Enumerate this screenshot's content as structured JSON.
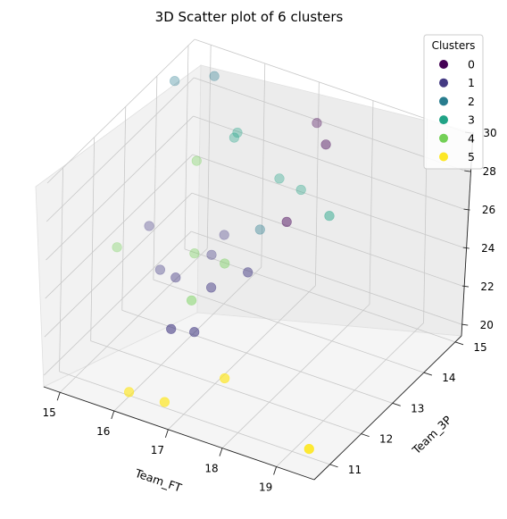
{
  "chart_data": {
    "type": "scatter",
    "projection": "3d",
    "title": "3D Scatter plot of 6 clusters",
    "xlabel": "Team_FT",
    "ylabel": "Team_3P",
    "zlabel": "",
    "xlim": [
      14.7,
      19.7
    ],
    "ylim": [
      10.5,
      15.2
    ],
    "zlim": [
      19.4,
      30.0
    ],
    "x_ticks": [
      "15",
      "16",
      "17",
      "18",
      "19"
    ],
    "y_ticks": [
      "11",
      "12",
      "13",
      "14",
      "15"
    ],
    "z_ticks": [
      "20",
      "22",
      "24",
      "26",
      "28",
      "30"
    ],
    "grid": true,
    "legend": {
      "title": "Clusters",
      "position": "top-right",
      "labels": [
        "0",
        "1",
        "2",
        "3",
        "4",
        "5"
      ]
    },
    "colors": [
      "#440154",
      "#443a83",
      "#287c8e",
      "#20a386",
      "#73d056",
      "#fde725"
    ],
    "series": [
      {
        "name": "0",
        "points": [
          {
            "x": 17.2,
            "y": 14.8,
            "z": 28.7
          },
          {
            "x": 17.6,
            "y": 14.4,
            "z": 28.6
          },
          {
            "x": 17.3,
            "y": 13.7,
            "z": 25.4
          }
        ]
      },
      {
        "name": "1",
        "points": [
          {
            "x": 15.0,
            "y": 13.3,
            "z": 23.6
          },
          {
            "x": 15.9,
            "y": 12.6,
            "z": 22.9
          },
          {
            "x": 15.5,
            "y": 12.8,
            "z": 22.6
          },
          {
            "x": 16.5,
            "y": 12.7,
            "z": 22.8
          },
          {
            "x": 16.1,
            "y": 13.8,
            "z": 23.4
          },
          {
            "x": 16.1,
            "y": 13.4,
            "z": 23.0
          },
          {
            "x": 17.0,
            "y": 13.0,
            "z": 23.6
          },
          {
            "x": 16.4,
            "y": 11.6,
            "z": 22.3
          },
          {
            "x": 16.6,
            "y": 12.0,
            "z": 21.7
          }
        ]
      },
      {
        "name": "2",
        "points": [
          {
            "x": 14.8,
            "y": 14.4,
            "z": 29.2
          },
          {
            "x": 15.3,
            "y": 14.8,
            "z": 29.3
          },
          {
            "x": 16.7,
            "y": 13.9,
            "z": 24.1
          }
        ]
      },
      {
        "name": "3",
        "points": [
          {
            "x": 15.8,
            "y": 14.7,
            "z": 27.0
          },
          {
            "x": 15.8,
            "y": 14.6,
            "z": 26.9
          },
          {
            "x": 16.7,
            "y": 14.5,
            "z": 25.8
          },
          {
            "x": 17.1,
            "y": 14.5,
            "z": 25.6
          },
          {
            "x": 17.8,
            "y": 14.2,
            "z": 25.4
          }
        ]
      },
      {
        "name": "4",
        "points": [
          {
            "x": 14.7,
            "y": 12.8,
            "z": 23.0
          },
          {
            "x": 15.4,
            "y": 14.1,
            "z": 26.1
          },
          {
            "x": 15.9,
            "y": 13.2,
            "z": 23.2
          },
          {
            "x": 16.2,
            "y": 12.6,
            "z": 22.0
          },
          {
            "x": 16.4,
            "y": 13.3,
            "z": 23.0
          }
        ]
      },
      {
        "name": "5",
        "points": [
          {
            "x": 16.1,
            "y": 10.8,
            "z": 20.0
          },
          {
            "x": 16.7,
            "y": 10.9,
            "z": 19.9
          },
          {
            "x": 17.4,
            "y": 11.6,
            "z": 20.7
          },
          {
            "x": 19.2,
            "y": 11.2,
            "z": 19.4
          }
        ]
      }
    ]
  }
}
